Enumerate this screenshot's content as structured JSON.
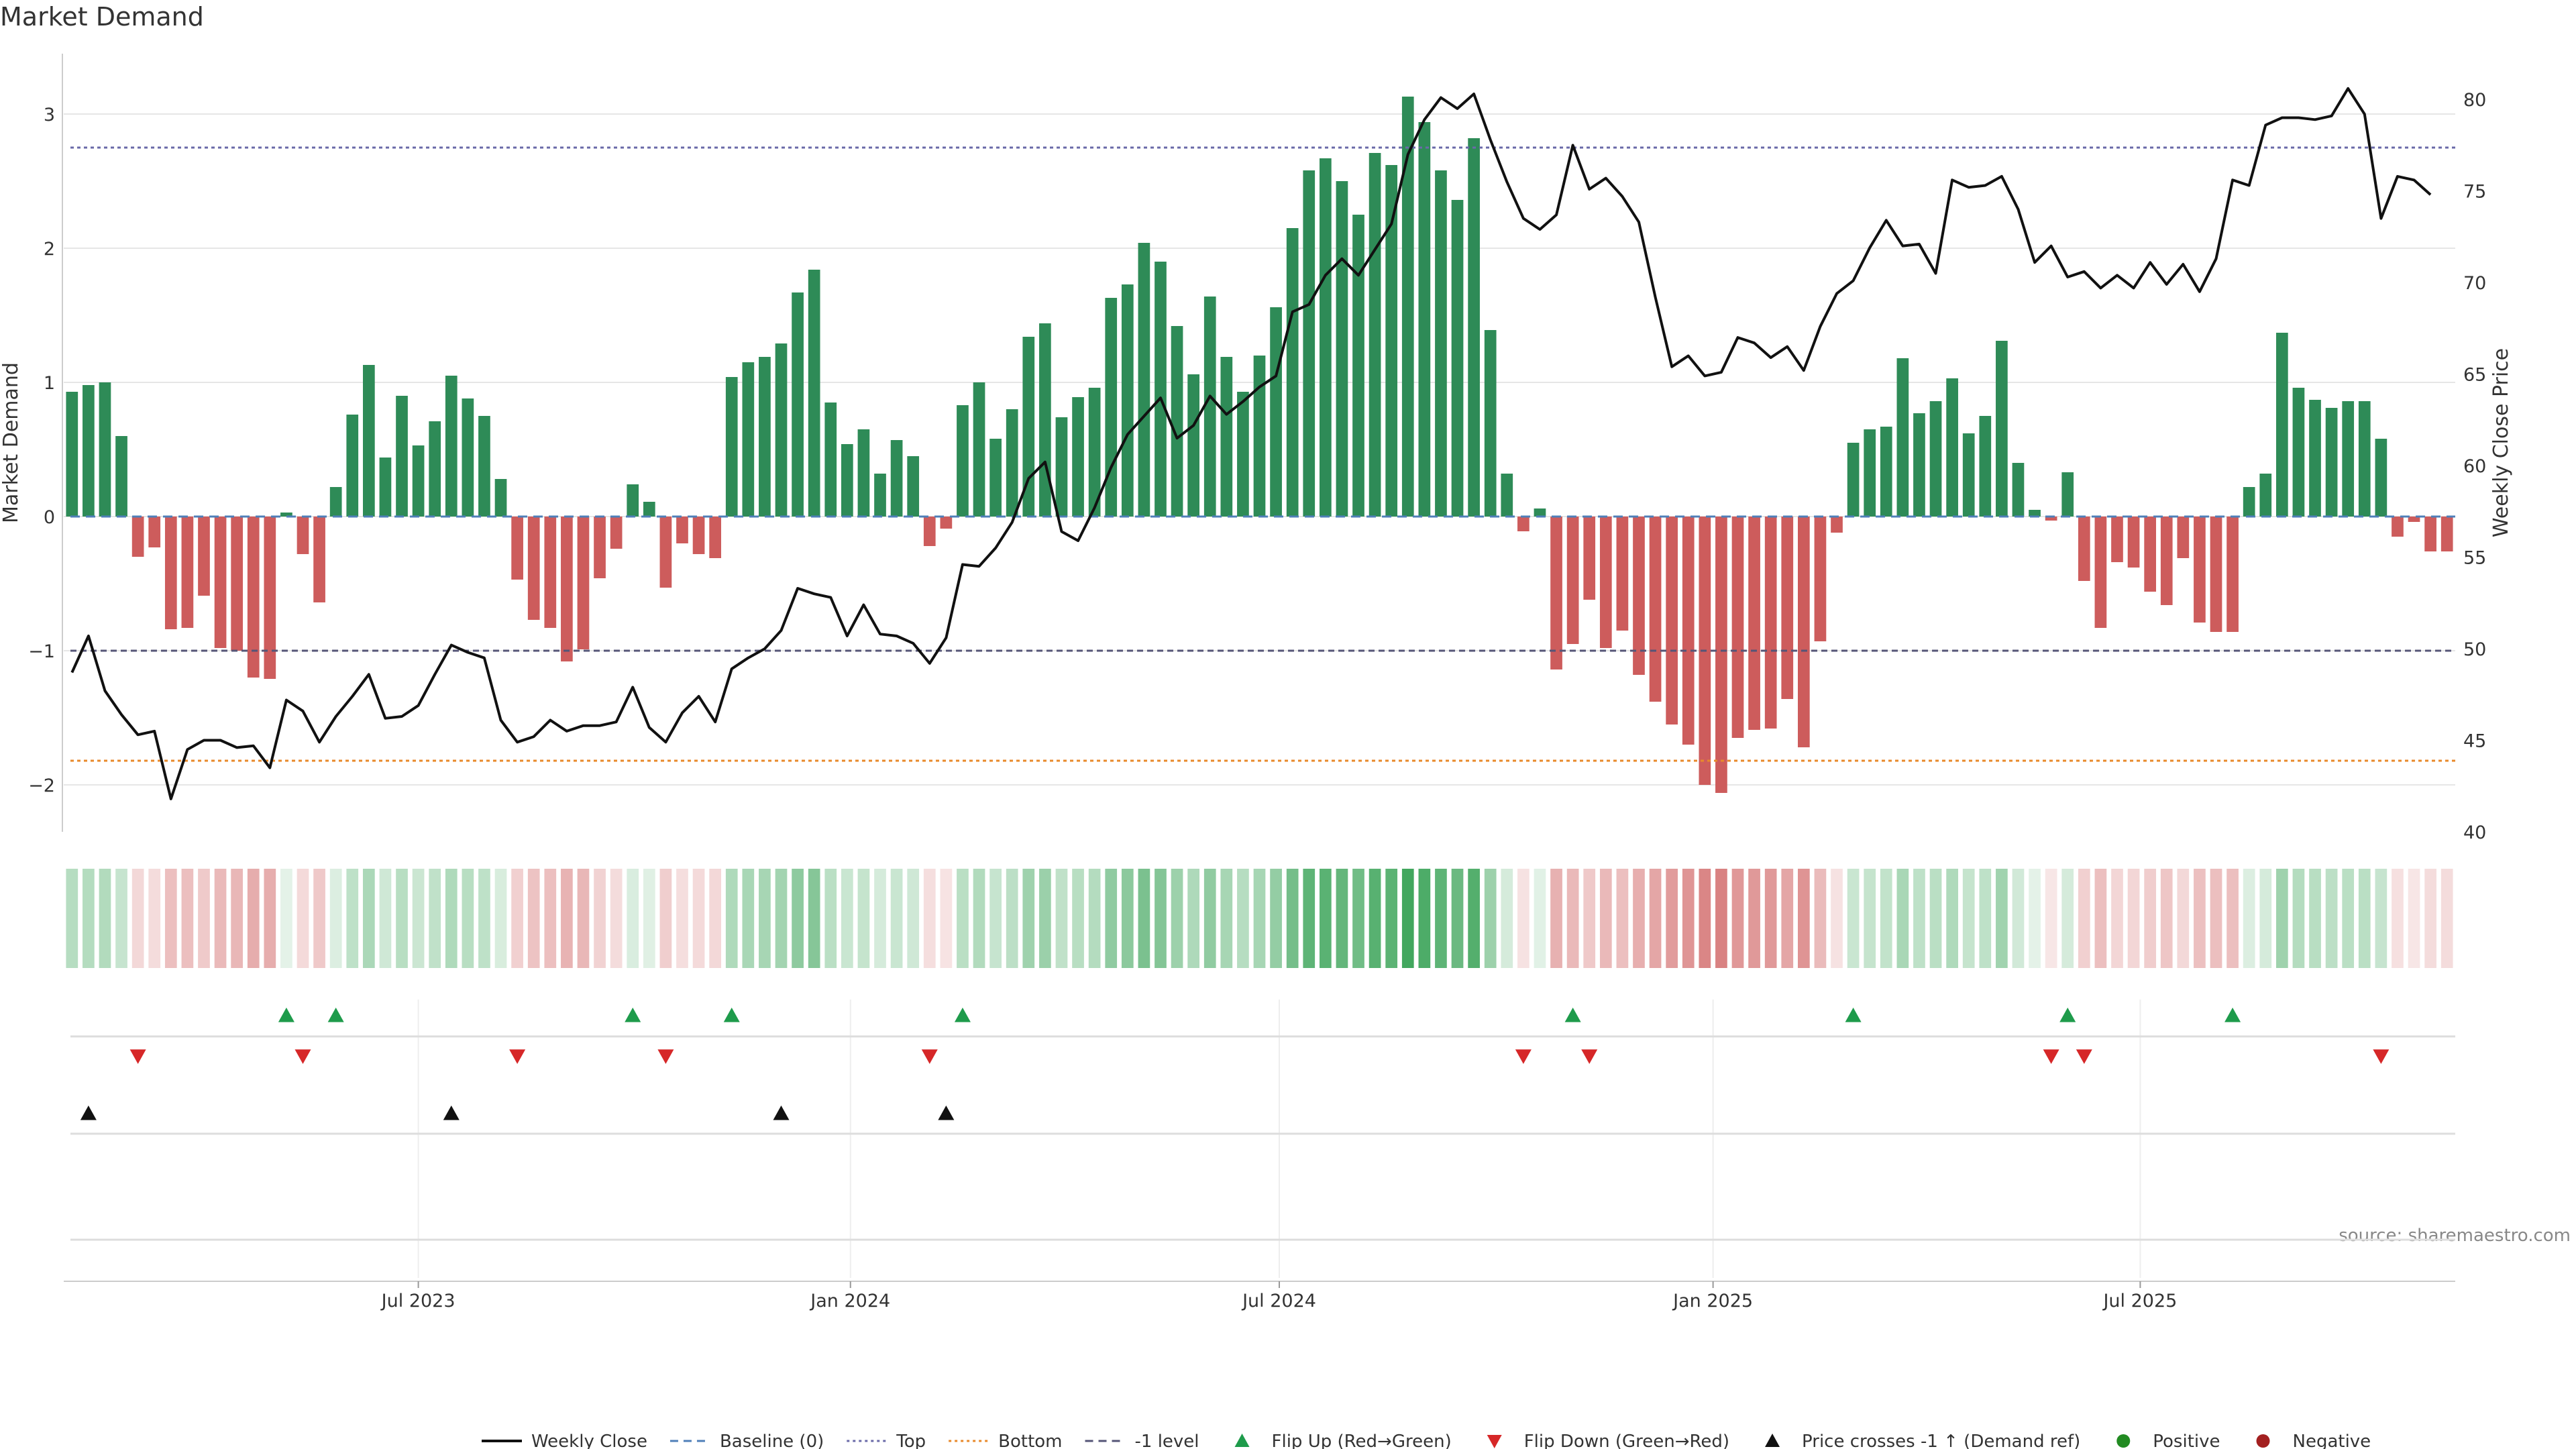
{
  "chart_data": {
    "type": "bar",
    "title": "Market Demand",
    "ylabel": "Market Demand",
    "y2label": "Weekly Close Price",
    "ylim": [
      -2.35,
      3.45
    ],
    "y2lim": [
      40,
      82.5
    ],
    "yticks": [
      -2,
      -1,
      0,
      1,
      2,
      3
    ],
    "yticklabels": [
      "−2",
      "−1",
      "0",
      "1",
      "2",
      "3"
    ],
    "y2ticks": [
      40,
      45,
      50,
      55,
      60,
      65,
      70,
      75,
      80
    ],
    "y2ticklabels": [
      "40",
      "45",
      "50",
      "55",
      "60",
      "65",
      "70",
      "75",
      "80"
    ],
    "levels": {
      "top": 2.75,
      "bottom": -1.82,
      "minus_one": -1.0,
      "baseline": 0
    },
    "x_weeks": 144,
    "xticks": [
      {
        "label": "Jul 2023",
        "week": 21.5
      },
      {
        "label": "Jan 2024",
        "week": 47.7
      },
      {
        "label": "Jul 2024",
        "week": 73.7
      },
      {
        "label": "Jan 2025",
        "week": 100.0
      },
      {
        "label": "Jul 2025",
        "week": 125.9
      }
    ],
    "series": [
      {
        "name": "Market Demand",
        "values": [
          0.93,
          0.98,
          1.0,
          0.6,
          -0.3,
          -0.23,
          -0.84,
          -0.83,
          -0.59,
          -0.98,
          -1.0,
          -1.2,
          -1.21,
          0.03,
          -0.28,
          -0.64,
          0.22,
          0.76,
          1.13,
          0.44,
          0.9,
          0.53,
          0.71,
          1.05,
          0.88,
          0.75,
          0.28,
          -0.47,
          -0.77,
          -0.83,
          -1.08,
          -0.99,
          -0.46,
          -0.24,
          0.24,
          0.11,
          -0.53,
          -0.2,
          -0.28,
          -0.31,
          1.04,
          1.15,
          1.19,
          1.29,
          1.67,
          1.84,
          0.85,
          0.54,
          0.65,
          0.32,
          0.57,
          0.45,
          -0.22,
          -0.09,
          0.83,
          1.0,
          0.58,
          0.8,
          1.34,
          1.44,
          0.74,
          0.89,
          0.96,
          1.63,
          1.73,
          2.04,
          1.9,
          1.42,
          1.06,
          1.64,
          1.19,
          0.93,
          1.2,
          1.56,
          2.15,
          2.58,
          2.67,
          2.5,
          2.25,
          2.71,
          2.62,
          3.13,
          2.94,
          2.58,
          2.36,
          2.82,
          1.39,
          0.32,
          -0.11,
          0.06,
          -1.14,
          -0.95,
          -0.62,
          -0.98,
          -0.85,
          -1.18,
          -1.38,
          -1.55,
          -1.7,
          -2.0,
          -2.06,
          -1.65,
          -1.59,
          -1.58,
          -1.36,
          -1.72,
          -0.93,
          -0.12,
          0.55,
          0.65,
          0.67,
          1.18,
          0.77,
          0.86,
          1.03,
          0.62,
          0.75,
          1.31,
          0.4,
          0.05,
          -0.03,
          0.33,
          -0.48,
          -0.83,
          -0.34,
          -0.38,
          -0.56,
          -0.66,
          -0.31,
          -0.79,
          -0.86,
          -0.86,
          0.22,
          0.32,
          1.37,
          0.96,
          0.87,
          0.81,
          0.86,
          0.86,
          0.58,
          -0.15,
          -0.04,
          -0.26,
          -0.26
        ]
      },
      {
        "name": "Weekly Close",
        "values": [
          48.7,
          50.7,
          47.7,
          46.4,
          45.3,
          45.5,
          41.8,
          44.5,
          45.0,
          45.0,
          44.6,
          44.7,
          43.5,
          47.2,
          46.6,
          44.9,
          46.3,
          47.4,
          48.6,
          46.2,
          46.3,
          46.9,
          48.6,
          50.2,
          49.8,
          49.5,
          46.1,
          44.9,
          45.2,
          46.1,
          45.5,
          45.8,
          45.8,
          46.0,
          47.9,
          45.7,
          44.9,
          46.5,
          47.4,
          46.0,
          48.9,
          49.5,
          50.0,
          51.0,
          53.3,
          53.0,
          52.8,
          50.7,
          52.4,
          50.8,
          50.7,
          50.3,
          49.2,
          50.6,
          54.6,
          54.5,
          55.5,
          56.9,
          59.3,
          60.2,
          56.4,
          55.9,
          57.7,
          59.9,
          61.7,
          62.7,
          63.7,
          61.5,
          62.2,
          63.8,
          62.8,
          63.5,
          64.3,
          64.9,
          68.4,
          68.8,
          70.4,
          71.3,
          70.4,
          71.8,
          73.2,
          77.0,
          78.9,
          80.1,
          79.5,
          80.3,
          77.8,
          75.5,
          73.5,
          72.9,
          73.7,
          77.5,
          75.1,
          75.7,
          74.7,
          73.3,
          69.2,
          65.4,
          66.0,
          64.9,
          65.1,
          67.0,
          66.7,
          65.9,
          66.5,
          65.2,
          67.6,
          69.4,
          70.1,
          71.9,
          73.4,
          72.0,
          72.1,
          70.5,
          75.6,
          75.2,
          75.3,
          75.8,
          74.0,
          71.1,
          72.0,
          70.3,
          70.6,
          69.7,
          70.4,
          69.7,
          71.1,
          69.9,
          71.0,
          69.5,
          71.3,
          75.6,
          75.3,
          78.6,
          79.0,
          79.0,
          78.9,
          79.1,
          80.6,
          79.2,
          73.5,
          75.8,
          75.6,
          74.8
        ]
      }
    ],
    "flip_up_weeks": [
      13,
      16,
      34,
      40,
      54,
      91,
      108,
      121,
      131
    ],
    "flip_down_weeks": [
      4,
      14,
      27,
      36,
      52,
      88,
      92,
      120,
      122,
      140
    ],
    "price_cross_weeks": [
      1,
      23,
      43,
      53
    ],
    "legend": {
      "placement": "bottom",
      "entries": [
        {
          "label": "Weekly Close",
          "kind": "line",
          "color": "#111111"
        },
        {
          "label": "Baseline (0)",
          "kind": "dash",
          "color": "#4f7fb8"
        },
        {
          "label": "Top",
          "kind": "dot",
          "color": "#6a6aa8"
        },
        {
          "label": "Bottom",
          "kind": "dot",
          "color": "#e88a2b"
        },
        {
          "label": "-1 level",
          "kind": "dash",
          "color": "#555577"
        },
        {
          "label": "Flip Up (Red→Green)",
          "kind": "tri-up",
          "color": "#1e9b4b"
        },
        {
          "label": "Flip Down (Green→Red)",
          "kind": "tri-down",
          "color": "#d62728"
        },
        {
          "label": "Price crosses -1 ↑ (Demand ref)",
          "kind": "tri-up",
          "color": "#111111"
        },
        {
          "label": "Positive",
          "kind": "dot-marker",
          "color": "#228b22"
        },
        {
          "label": "Negative",
          "kind": "dot-marker",
          "color": "#a32020"
        }
      ]
    },
    "source": "source: sharemaestro.com",
    "colors": {
      "positive_bar": "#2e8b57",
      "negative_bar": "#cd5c5c",
      "price_line": "#111111",
      "top_line": "#6a6aa8",
      "bottom_line": "#e88a2b",
      "minus_one_line": "#555577",
      "baseline_line": "#4f7fb8",
      "heat_positive": "#2e9d4d",
      "heat_negative": "#c43c3c",
      "grid": "#e6e6e6"
    }
  }
}
